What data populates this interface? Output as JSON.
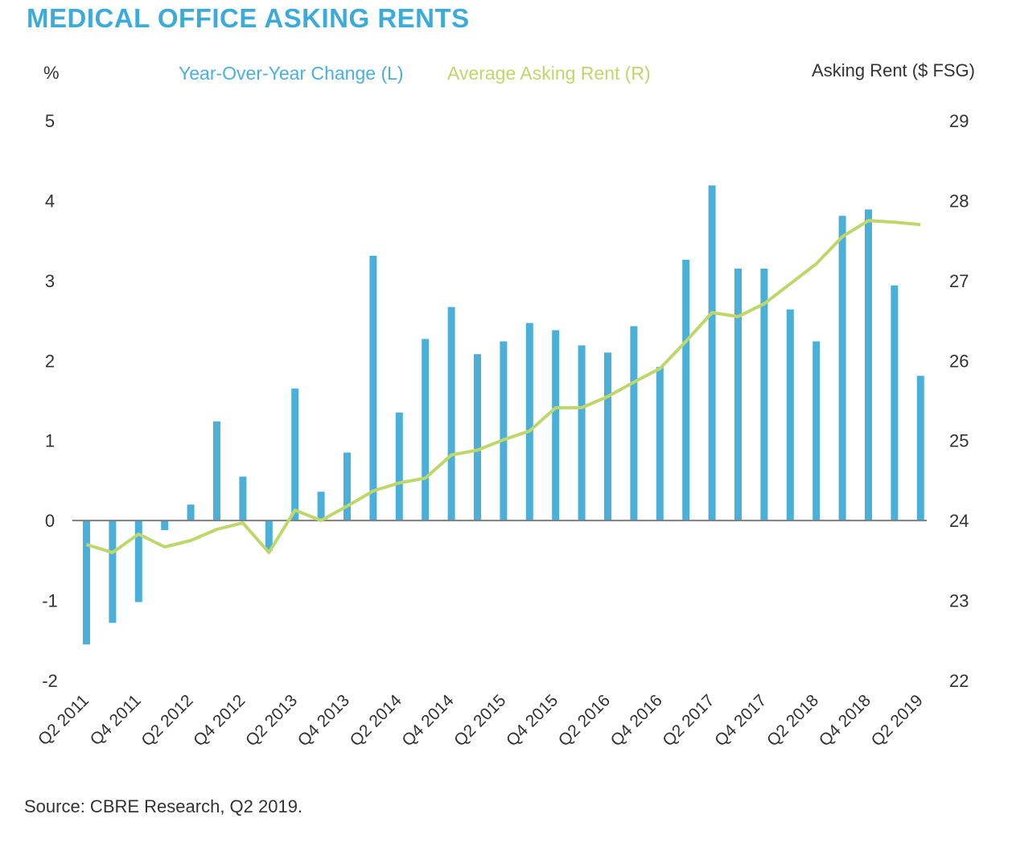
{
  "colors": {
    "title": "#3cabd8",
    "bar": "#4bb0d9",
    "line": "#bfd66b",
    "axis": "#7f7f7f",
    "text": "#333333"
  },
  "header": {
    "title": "MEDICAL OFFICE ASKING RENTS",
    "left_unit": "%",
    "right_unit": "Asking Rent ($ FSG)"
  },
  "source": "Source: CBRE Research, Q2 2019.",
  "chart_data": {
    "type": "bar+line",
    "title": "MEDICAL OFFICE ASKING RENTS",
    "ylabel_left": "%",
    "ylabel_right": "Asking Rent ($ FSG)",
    "legend": [
      "Year-Over-Year Change (L)",
      "Average Asking Rent (R)"
    ],
    "legend_position": "top",
    "grid": false,
    "ylim_left": [
      -2,
      5
    ],
    "ylim_right": [
      22,
      29
    ],
    "yticks_left": [
      "5",
      "4",
      "3",
      "2",
      "1",
      "0",
      "-1",
      "-2"
    ],
    "yticks_right": [
      "29",
      "28",
      "27",
      "26",
      "25",
      "24",
      "23",
      "22"
    ],
    "x_tick_labels": [
      "Q2 2011",
      "Q4 2011",
      "Q2 2012",
      "Q4 2012",
      "Q2 2013",
      "Q4 2013",
      "Q2 2014",
      "Q4 2014",
      "Q2 2015",
      "Q4 2015",
      "Q2 2016",
      "Q4 2016",
      "Q2 2017",
      "Q4 2017",
      "Q2 2018",
      "Q4 2018",
      "Q2 2019"
    ],
    "categories": [
      "Q2 2011",
      "Q3 2011",
      "Q4 2011",
      "Q1 2012",
      "Q2 2012",
      "Q3 2012",
      "Q4 2012",
      "Q1 2013",
      "Q2 2013",
      "Q3 2013",
      "Q4 2013",
      "Q1 2014",
      "Q2 2014",
      "Q3 2014",
      "Q4 2014",
      "Q1 2015",
      "Q2 2015",
      "Q3 2015",
      "Q4 2015",
      "Q1 2016",
      "Q2 2016",
      "Q3 2016",
      "Q4 2016",
      "Q1 2017",
      "Q2 2017",
      "Q3 2017",
      "Q4 2017",
      "Q1 2018",
      "Q2 2018",
      "Q3 2018",
      "Q4 2018",
      "Q1 2019",
      "Q2 2019"
    ],
    "series": [
      {
        "name": "Year-Over-Year Change (L)",
        "type": "bar",
        "axis": "left",
        "values": [
          -1.55,
          -1.28,
          -1.02,
          -0.12,
          0.2,
          1.24,
          0.55,
          -0.38,
          1.65,
          0.36,
          0.85,
          3.31,
          1.35,
          2.27,
          2.67,
          2.08,
          2.24,
          2.47,
          2.38,
          2.19,
          2.1,
          2.43,
          1.92,
          3.26,
          4.19,
          3.15,
          3.15,
          2.64,
          2.24,
          3.81,
          3.89,
          2.94,
          1.81
        ]
      },
      {
        "name": "Average Asking Rent (R)",
        "type": "line",
        "axis": "right",
        "values": [
          23.7,
          23.6,
          23.83,
          23.67,
          23.75,
          23.89,
          23.97,
          23.6,
          24.13,
          24.0,
          24.18,
          24.37,
          24.47,
          24.53,
          24.82,
          24.88,
          25.01,
          25.12,
          25.41,
          25.41,
          25.55,
          25.73,
          25.9,
          26.24,
          26.6,
          26.55,
          26.71,
          26.96,
          27.21,
          27.55,
          27.75,
          27.73,
          27.7
        ]
      }
    ]
  }
}
